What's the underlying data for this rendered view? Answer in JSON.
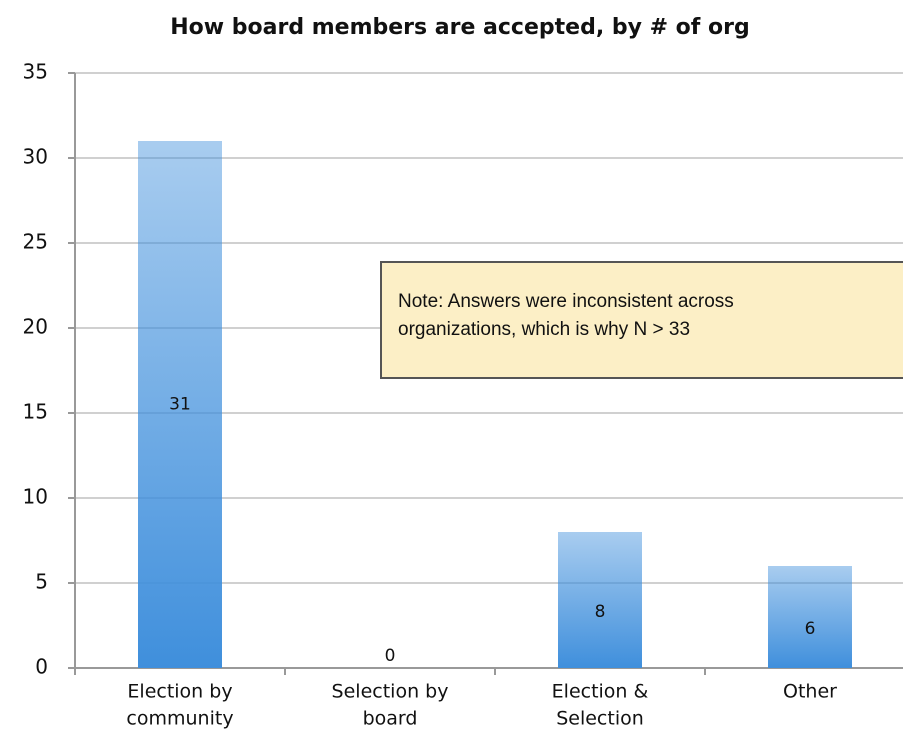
{
  "chart_data": {
    "type": "bar",
    "title": "How board members are accepted, by # of org",
    "categories": [
      [
        "Election by",
        "community"
      ],
      [
        "Selection by",
        "board"
      ],
      [
        "Election &",
        "Selection"
      ],
      [
        "Other"
      ]
    ],
    "values": [
      31,
      0,
      8,
      6
    ],
    "color": "#3f8fdc",
    "ylim": [
      0,
      35
    ],
    "yticks": [
      0,
      5,
      10,
      15,
      20,
      25,
      30,
      35
    ],
    "grid": true,
    "annotation": [
      "Note: Answers were inconsistent across",
      "organizations, which is why N > 33"
    ]
  }
}
